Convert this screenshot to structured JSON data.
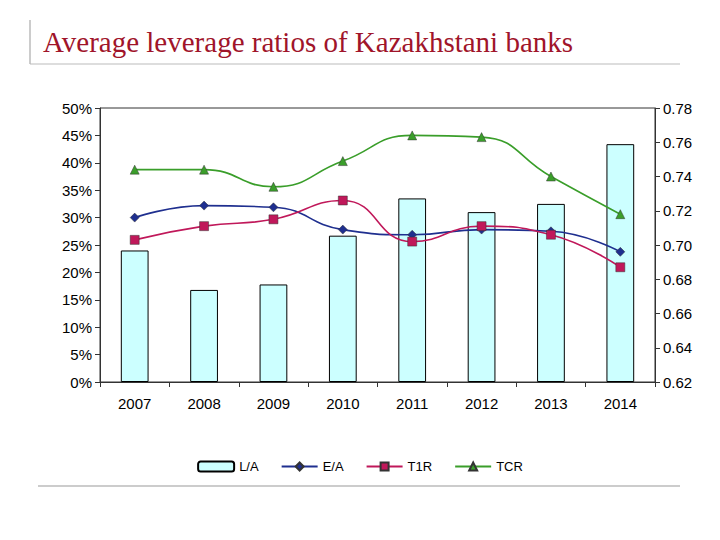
{
  "chart_data": {
    "type": "bar",
    "title": "Average leverage ratios of Kazakhstani banks",
    "categories": [
      "2007",
      "2008",
      "2009",
      "2010",
      "2011",
      "2012",
      "2013",
      "2014"
    ],
    "series": [
      {
        "name": "L/A",
        "type": "bar",
        "color": "#ccffff",
        "values": [
          24,
          16.8,
          17.8,
          26.7,
          33.5,
          31,
          32.5,
          43.4
        ]
      },
      {
        "name": "E/A",
        "type": "line",
        "axis": "y2",
        "color": "#1f2f8f",
        "marker": "diamond",
        "values": [
          0.716,
          0.723,
          0.722,
          0.709,
          0.706,
          0.709,
          0.708,
          0.696
        ]
      },
      {
        "name": "T1R",
        "type": "line",
        "axis": "y2",
        "color": "#c0185a",
        "marker": "rect",
        "values": [
          0.703,
          0.711,
          0.715,
          0.726,
          0.702,
          0.711,
          0.706,
          0.687
        ]
      },
      {
        "name": "TCR",
        "type": "line",
        "axis": "y2",
        "color": "#3a9e2a",
        "marker": "triangle",
        "values": [
          0.744,
          0.744,
          0.734,
          0.749,
          0.764,
          0.763,
          0.74,
          0.718
        ]
      }
    ],
    "ylim": [
      0,
      50
    ],
    "yticks": [
      {
        "value": 0,
        "label": "0%"
      },
      {
        "value": 5,
        "label": "5%"
      },
      {
        "value": 10,
        "label": "10%"
      },
      {
        "value": 15,
        "label": "15%"
      },
      {
        "value": 20,
        "label": "20%"
      },
      {
        "value": 25,
        "label": "25%"
      },
      {
        "value": 30,
        "label": "30%"
      },
      {
        "value": 35,
        "label": "35%"
      },
      {
        "value": 40,
        "label": "40%"
      },
      {
        "value": 45,
        "label": "45%"
      },
      {
        "value": 50,
        "label": "50%"
      }
    ],
    "y2lim": [
      0.62,
      0.78
    ],
    "y2ticks": [
      0.62,
      0.64,
      0.66,
      0.68,
      {
        "value": 0.7,
        "label": "0.70"
      },
      0.72,
      0.74,
      0.76,
      0.78
    ],
    "grid": false,
    "legend": "bottom"
  }
}
